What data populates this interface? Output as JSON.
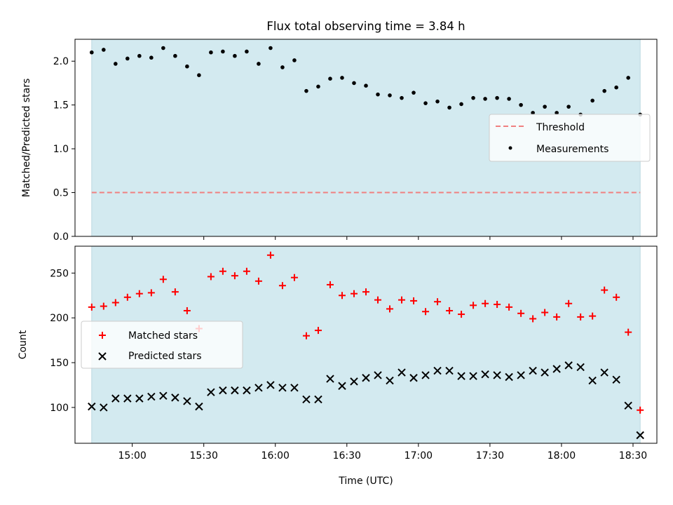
{
  "title": "Flux total observing time = 3.84 h",
  "colors": {
    "shade": "#d3eaf0",
    "threshold": "#f08080",
    "measurement": "#000000",
    "matched": "#ff0000",
    "predicted": "#000000"
  },
  "chart_data": [
    {
      "type": "scatter",
      "ylabel": "Matched/Predicted stars",
      "ylim": [
        0,
        2.25
      ],
      "yticks": [
        0.0,
        0.5,
        1.0,
        1.5,
        2.0
      ],
      "ytick_labels": [
        "0.0",
        "0.5",
        "1.0",
        "1.5",
        "2.0"
      ],
      "shaded_span": [
        "14:43",
        "18:33"
      ],
      "threshold": {
        "name": "Threshold",
        "value": 0.5,
        "style": "dashed"
      },
      "legend": {
        "position": "center-right",
        "entries": [
          "Threshold",
          "Measurements"
        ]
      },
      "series": [
        {
          "name": "Measurements",
          "x": [
            "14:43",
            "14:48",
            "14:53",
            "14:58",
            "15:03",
            "15:08",
            "15:13",
            "15:18",
            "15:23",
            "15:28",
            "15:33",
            "15:38",
            "15:43",
            "15:48",
            "15:53",
            "15:58",
            "16:03",
            "16:08",
            "16:13",
            "16:18",
            "16:23",
            "16:28",
            "16:33",
            "16:38",
            "16:43",
            "16:48",
            "16:53",
            "16:58",
            "17:03",
            "17:08",
            "17:13",
            "17:18",
            "17:23",
            "17:28",
            "17:33",
            "17:38",
            "17:43",
            "17:48",
            "17:53",
            "17:58",
            "18:03",
            "18:08",
            "18:13",
            "18:18",
            "18:23",
            "18:28",
            "18:33"
          ],
          "values": [
            2.1,
            2.13,
            1.97,
            2.03,
            2.06,
            2.04,
            2.15,
            2.06,
            1.94,
            1.84,
            2.1,
            2.11,
            2.06,
            2.11,
            1.97,
            2.15,
            1.93,
            2.01,
            1.66,
            1.71,
            1.8,
            1.81,
            1.75,
            1.72,
            1.62,
            1.61,
            1.58,
            1.64,
            1.52,
            1.54,
            1.47,
            1.51,
            1.58,
            1.57,
            1.58,
            1.57,
            1.5,
            1.41,
            1.48,
            1.41,
            1.48,
            1.39,
            1.55,
            1.66,
            1.7,
            1.81,
            1.39
          ]
        }
      ]
    },
    {
      "type": "scatter",
      "xlabel": "Time (UTC)",
      "ylabel": "Count",
      "ylim": [
        60,
        280
      ],
      "yticks": [
        100,
        150,
        200,
        250
      ],
      "ytick_labels": [
        "100",
        "150",
        "200",
        "250"
      ],
      "xlim": [
        "14:36",
        "18:40"
      ],
      "xticks": [
        "15:00",
        "15:30",
        "16:00",
        "16:30",
        "17:00",
        "17:30",
        "18:00",
        "18:30"
      ],
      "shaded_span": [
        "14:43",
        "18:33"
      ],
      "legend": {
        "position": "center-left",
        "entries": [
          "Matched stars",
          "Predicted stars"
        ]
      },
      "series": [
        {
          "name": "Matched stars",
          "marker": "plus",
          "x": [
            "14:43",
            "14:48",
            "14:53",
            "14:58",
            "15:03",
            "15:08",
            "15:13",
            "15:18",
            "15:23",
            "15:28",
            "15:33",
            "15:38",
            "15:43",
            "15:48",
            "15:53",
            "15:58",
            "16:03",
            "16:08",
            "16:13",
            "16:18",
            "16:23",
            "16:28",
            "16:33",
            "16:38",
            "16:43",
            "16:48",
            "16:53",
            "16:58",
            "17:03",
            "17:08",
            "17:13",
            "17:18",
            "17:23",
            "17:28",
            "17:33",
            "17:38",
            "17:43",
            "17:48",
            "17:53",
            "17:58",
            "18:03",
            "18:08",
            "18:13",
            "18:18",
            "18:23",
            "18:28",
            "18:33"
          ],
          "values": [
            212,
            213,
            217,
            223,
            227,
            228,
            243,
            229,
            208,
            188,
            246,
            252,
            247,
            252,
            241,
            270,
            236,
            245,
            180,
            186,
            237,
            225,
            227,
            229,
            220,
            210,
            220,
            219,
            207,
            218,
            208,
            204,
            214,
            216,
            215,
            212,
            205,
            199,
            206,
            201,
            216,
            201,
            202,
            231,
            223,
            184,
            97
          ]
        },
        {
          "name": "Predicted stars",
          "marker": "x",
          "x": [
            "14:43",
            "14:48",
            "14:53",
            "14:58",
            "15:03",
            "15:08",
            "15:13",
            "15:18",
            "15:23",
            "15:28",
            "15:33",
            "15:38",
            "15:43",
            "15:48",
            "15:53",
            "15:58",
            "16:03",
            "16:08",
            "16:13",
            "16:18",
            "16:23",
            "16:28",
            "16:33",
            "16:38",
            "16:43",
            "16:48",
            "16:53",
            "16:58",
            "17:03",
            "17:08",
            "17:13",
            "17:18",
            "17:23",
            "17:28",
            "17:33",
            "17:38",
            "17:43",
            "17:48",
            "17:53",
            "17:58",
            "18:03",
            "18:08",
            "18:13",
            "18:18",
            "18:23",
            "18:28",
            "18:33"
          ],
          "values": [
            101,
            100,
            110,
            110,
            110,
            112,
            113,
            111,
            107,
            101,
            117,
            119,
            119,
            119,
            122,
            125,
            122,
            122,
            109,
            109,
            132,
            124,
            129,
            133,
            136,
            130,
            139,
            133,
            136,
            141,
            141,
            135,
            135,
            137,
            136,
            134,
            136,
            141,
            139,
            143,
            147,
            145,
            130,
            139,
            131,
            102,
            69
          ]
        }
      ]
    }
  ]
}
